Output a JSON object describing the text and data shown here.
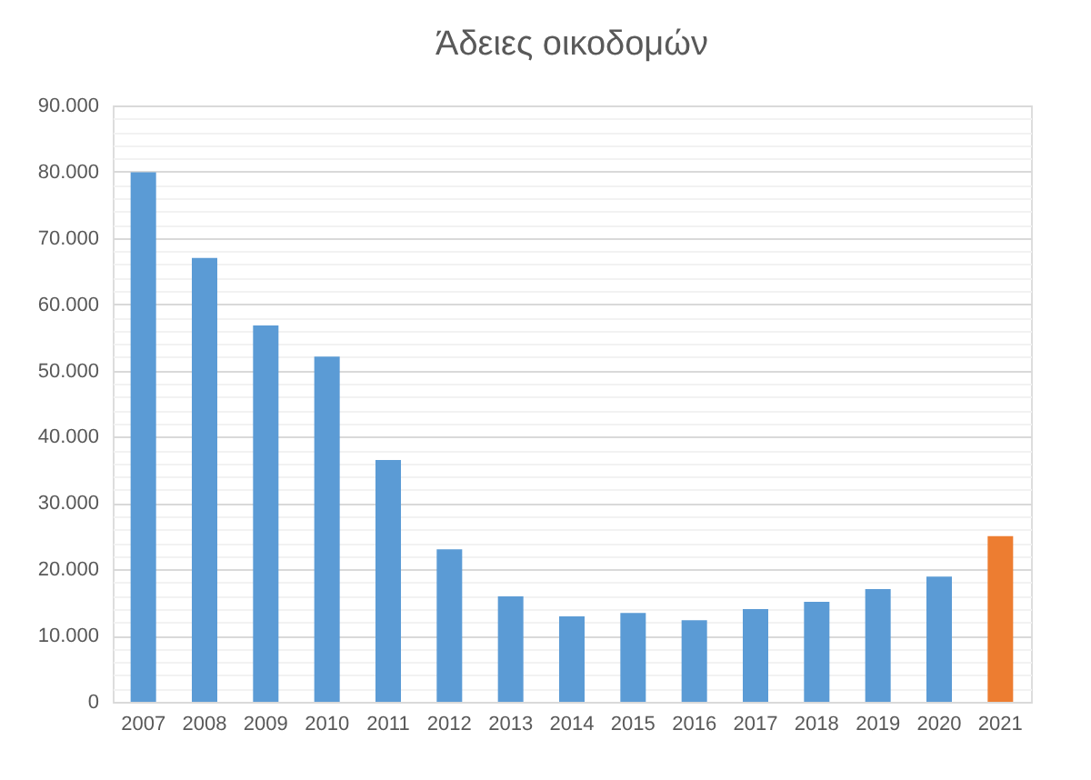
{
  "chart_data": {
    "type": "bar",
    "title": "Άδειες οικοδομών",
    "categories": [
      "2007",
      "2008",
      "2009",
      "2010",
      "2011",
      "2012",
      "2013",
      "2014",
      "2015",
      "2016",
      "2017",
      "2018",
      "2019",
      "2020",
      "2021"
    ],
    "values": [
      79900,
      67000,
      56800,
      52100,
      36500,
      23000,
      15900,
      12900,
      13400,
      12300,
      14000,
      15100,
      17000,
      18900,
      25000
    ],
    "colors": [
      "#5b9bd5",
      "#5b9bd5",
      "#5b9bd5",
      "#5b9bd5",
      "#5b9bd5",
      "#5b9bd5",
      "#5b9bd5",
      "#5b9bd5",
      "#5b9bd5",
      "#5b9bd5",
      "#5b9bd5",
      "#5b9bd5",
      "#5b9bd5",
      "#5b9bd5",
      "#ed7d31"
    ],
    "ylim": [
      0,
      90000
    ],
    "yticks": [
      0,
      {
        "value": 2000,
        "label": null
      },
      {
        "value": 4000,
        "label": null
      },
      {
        "value": 6000,
        "label": null
      },
      {
        "value": 8000,
        "label": null
      },
      {
        "value": 10000,
        "label": "10.000"
      },
      {
        "value": 12000,
        "label": null
      },
      {
        "value": 14000,
        "label": null
      },
      {
        "value": 16000,
        "label": null
      },
      {
        "value": 18000,
        "label": null
      },
      {
        "value": 20000,
        "label": "20.000"
      },
      {
        "value": 22000,
        "label": null
      },
      {
        "value": 24000,
        "label": null
      },
      {
        "value": 26000,
        "label": null
      },
      {
        "value": 28000,
        "label": null
      },
      {
        "value": 30000,
        "label": "30.000"
      },
      {
        "value": 32000,
        "label": null
      },
      {
        "value": 34000,
        "label": null
      },
      {
        "value": 36000,
        "label": null
      },
      {
        "value": 38000,
        "label": null
      },
      {
        "value": 40000,
        "label": "40.000"
      },
      {
        "value": 42000,
        "label": null
      },
      {
        "value": 44000,
        "label": null
      },
      {
        "value": 46000,
        "label": null
      },
      {
        "value": 48000,
        "label": null
      },
      {
        "value": 50000,
        "label": "50.000"
      },
      {
        "value": 52000,
        "label": null
      },
      {
        "value": 54000,
        "label": null
      },
      {
        "value": 56000,
        "label": null
      },
      {
        "value": 58000,
        "label": null
      },
      {
        "value": 60000,
        "label": "60.000"
      },
      {
        "value": 62000,
        "label": null
      },
      {
        "value": 64000,
        "label": null
      },
      {
        "value": 66000,
        "label": null
      },
      {
        "value": 68000,
        "label": null
      },
      {
        "value": 70000,
        "label": "70.000"
      },
      {
        "value": 72000,
        "label": null
      },
      {
        "value": 74000,
        "label": null
      },
      {
        "value": 76000,
        "label": null
      },
      {
        "value": 78000,
        "label": null
      },
      {
        "value": 80000,
        "label": "80.000"
      },
      {
        "value": 82000,
        "label": null
      },
      {
        "value": 84000,
        "label": null
      },
      {
        "value": 86000,
        "label": null
      },
      {
        "value": 88000,
        "label": null
      },
      {
        "value": 90000,
        "label": "90.000"
      }
    ],
    "grid": "y"
  }
}
